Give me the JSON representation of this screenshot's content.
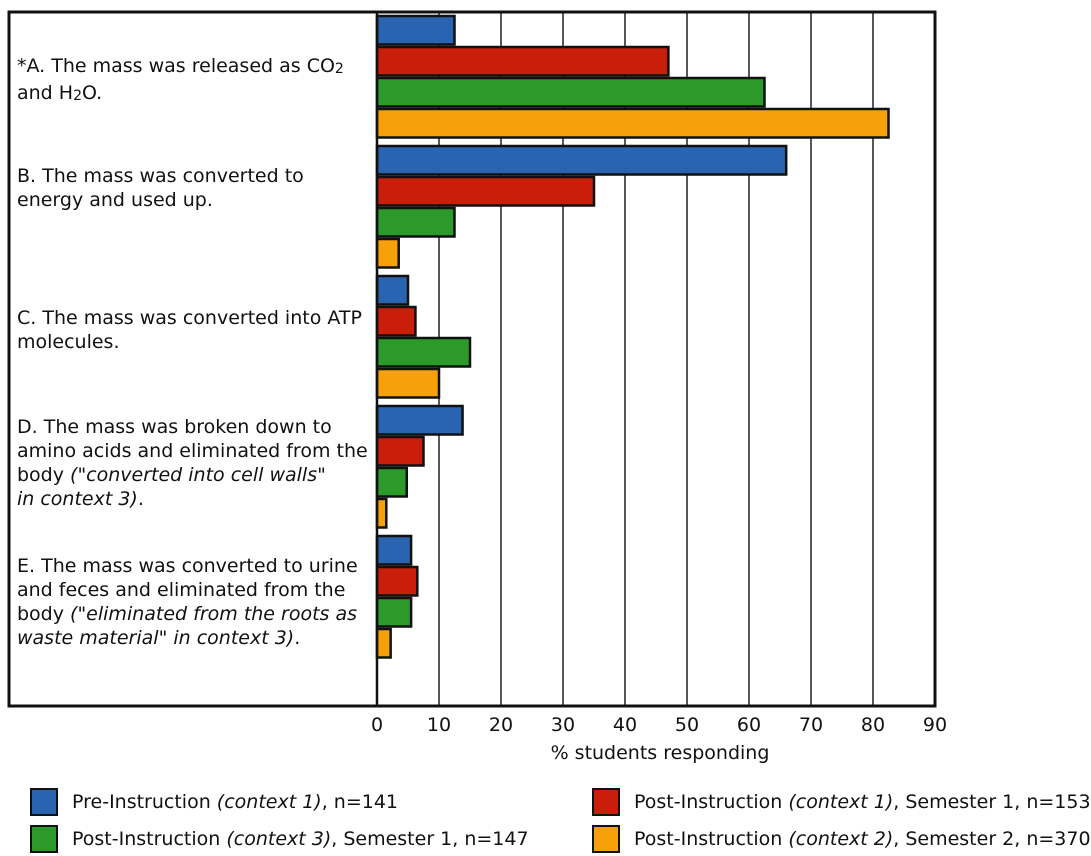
{
  "chart_data": {
    "type": "bar",
    "orientation": "horizontal",
    "categories": [
      {
        "key": "A",
        "parts": [
          {
            "t": "*A. The mass was released as CO"
          },
          {
            "t": "2",
            "sub": true
          },
          {
            "t": "\nand H"
          },
          {
            "t": "2",
            "sub": true
          },
          {
            "t": "O."
          }
        ]
      },
      {
        "key": "B",
        "parts": [
          {
            "t": "B. The mass was converted to\nenergy and used up."
          }
        ]
      },
      {
        "key": "C",
        "parts": [
          {
            "t": "C. The mass was converted into ATP\nmolecules."
          }
        ]
      },
      {
        "key": "D",
        "parts": [
          {
            "t": "D. The mass was broken down to\namino acids and eliminated from the\nbody "
          },
          {
            "t": "(\"converted into cell walls\"\nin context 3)",
            "i": true
          },
          {
            "t": "."
          }
        ]
      },
      {
        "key": "E",
        "parts": [
          {
            "t": "E. The mass was converted to urine\nand feces and eliminated from the\nbody "
          },
          {
            "t": "(\"eliminated from the roots as\nwaste material\" in context 3)",
            "i": true
          },
          {
            "t": "."
          }
        ]
      }
    ],
    "series": [
      {
        "color": "#2a63b0",
        "values": [
          12.5,
          66,
          5,
          13.8,
          5.5
        ],
        "legend_parts": [
          {
            "t": "Pre-Instruction "
          },
          {
            "t": "(context 1)",
            "i": true
          },
          {
            "t": ", n=141"
          }
        ]
      },
      {
        "color": "#c91e0a",
        "values": [
          47,
          35,
          6.2,
          7.5,
          6.5
        ],
        "legend_parts": [
          {
            "t": "Post-Instruction "
          },
          {
            "t": "(context 1)",
            "i": true
          },
          {
            "t": ",  Semester 1, n=153"
          }
        ]
      },
      {
        "color": "#2b9a2b",
        "values": [
          62.5,
          12.5,
          15,
          4.8,
          5.5
        ],
        "legend_parts": [
          {
            "t": "Post-Instruction "
          },
          {
            "t": "(context 3)",
            "i": true
          },
          {
            "t": ",  Semester 1, n=147"
          }
        ]
      },
      {
        "color": "#f7a10a",
        "values": [
          82.5,
          3.5,
          10,
          1.5,
          2.2
        ],
        "legend_parts": [
          {
            "t": "Post-Instruction "
          },
          {
            "t": "(context 2)",
            "i": true
          },
          {
            "t": ",  Semester 2, n=370"
          }
        ]
      }
    ],
    "xlabel": "% students responding",
    "xlim": [
      0,
      90
    ],
    "xticks": [
      0,
      10,
      20,
      30,
      40,
      50,
      60,
      70,
      80,
      90
    ],
    "grid": true,
    "legend_position": "bottom"
  }
}
